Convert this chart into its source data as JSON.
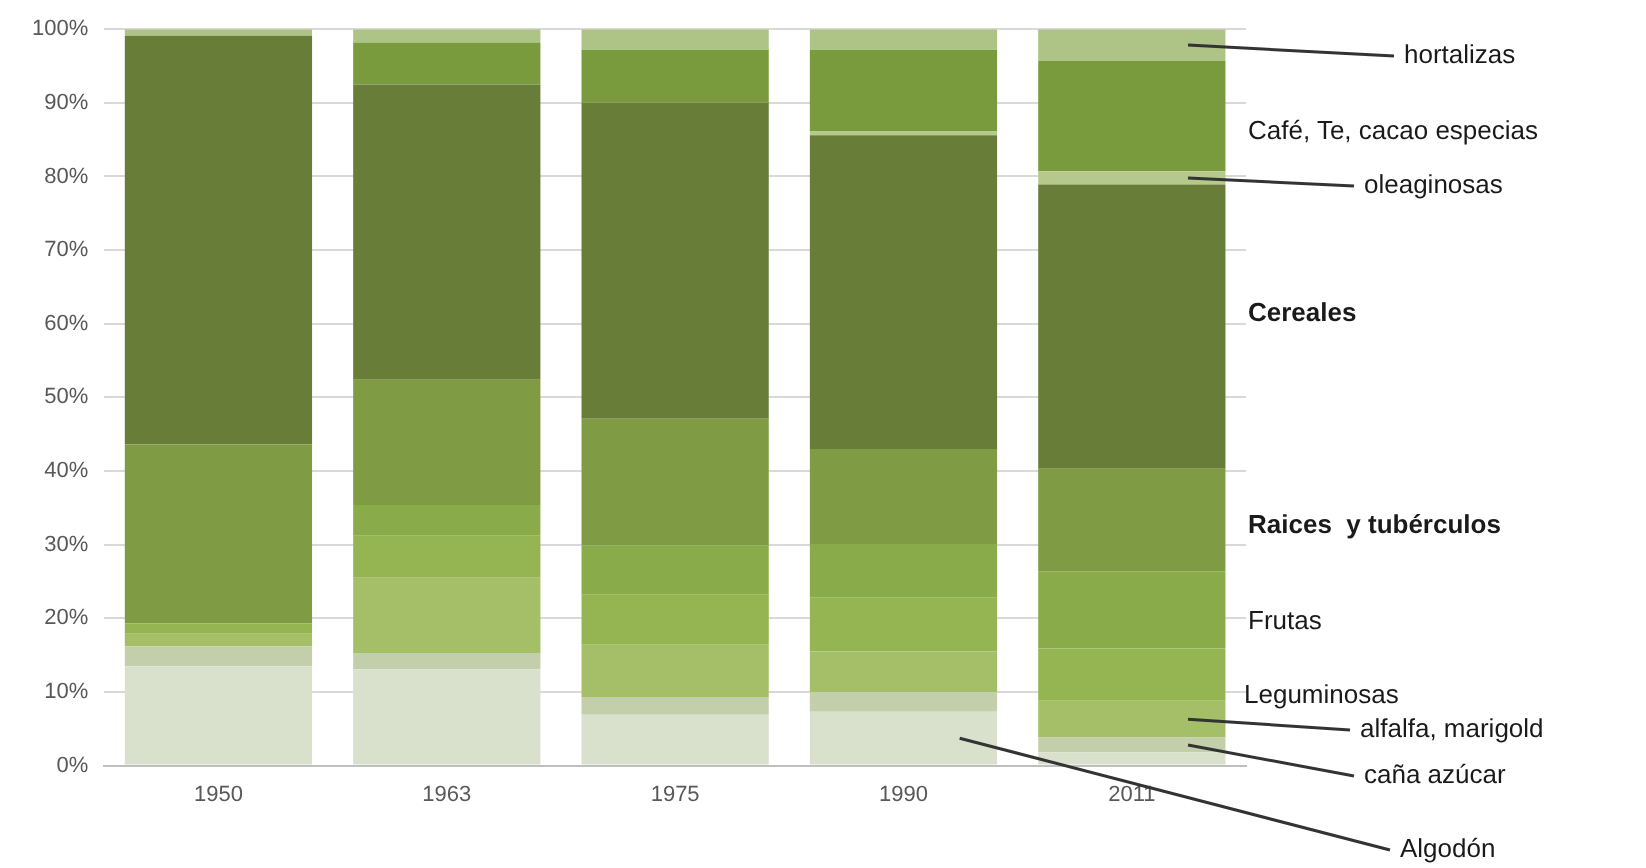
{
  "chart_data": {
    "type": "bar",
    "stacked": true,
    "categories": [
      "1950",
      "1963",
      "1975",
      "1990",
      "2011"
    ],
    "ylim": [
      0,
      100
    ],
    "yticks": [
      {
        "value": 0,
        "label": "0%"
      },
      {
        "value": 10,
        "label": "10%"
      },
      {
        "value": 20,
        "label": "20%"
      },
      {
        "value": 30,
        "label": "30%"
      },
      {
        "value": 40,
        "label": "40%"
      },
      {
        "value": 50,
        "label": "50%"
      },
      {
        "value": 60,
        "label": "60%"
      },
      {
        "value": 70,
        "label": "70%"
      },
      {
        "value": 80,
        "label": "80%"
      },
      {
        "value": 90,
        "label": "90%"
      },
      {
        "value": 100,
        "label": "100%"
      }
    ],
    "grid": "y",
    "legend": false,
    "series": [
      {
        "name": "Algodón",
        "color": "#d9e0cb",
        "values": [
          13.5,
          13.1,
          6.9,
          7.3,
          1.8
        ]
      },
      {
        "name": "caña azúcar",
        "color": "#c3cfaa",
        "values": [
          2.7,
          2.2,
          2.4,
          2.7,
          2.0
        ]
      },
      {
        "name": "alfalfa, marigold",
        "color": "#a4bf68",
        "values": [
          1.7,
          10.2,
          7.1,
          5.5,
          5.0
        ]
      },
      {
        "name": "Leguminosas",
        "color": "#94b552",
        "values": [
          1.4,
          5.7,
          6.8,
          7.3,
          7.1
        ]
      },
      {
        "name": "Frutas",
        "color": "#8aab4a",
        "values": [
          0,
          4.2,
          6.7,
          7.3,
          10.5
        ]
      },
      {
        "name": "Raices  y tubérculos",
        "color": "#7f9c44",
        "values": [
          24.3,
          17.0,
          17.2,
          12.9,
          13.9
        ]
      },
      {
        "name": "Cereales",
        "color": "#687d37",
        "values": [
          55.5,
          40.1,
          42.9,
          42.6,
          38.6
        ]
      },
      {
        "name": "oleaginosas",
        "color": "#b5c98c",
        "values": [
          0,
          0,
          0,
          0.5,
          1.8
        ]
      },
      {
        "name": "Café, Te, cacao especias",
        "color": "#7a9a3e",
        "values": [
          0,
          5.7,
          7.2,
          11.1,
          15.0
        ]
      },
      {
        "name": "hortalizas",
        "color": "#adc486",
        "values": [
          0.9,
          1.8,
          2.8,
          2.8,
          4.3
        ]
      }
    ]
  }
}
